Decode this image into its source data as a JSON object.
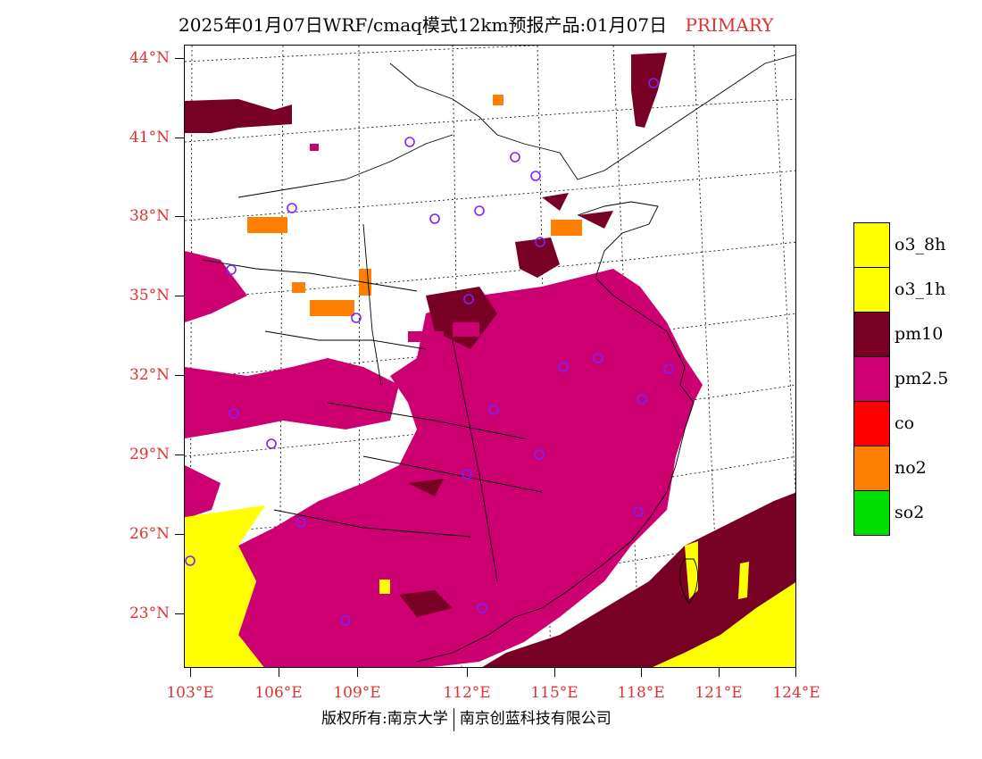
{
  "header": {
    "title": "2025年01月07日WRF/cmaq模式12km预报产品:01月07日",
    "mode": "PRIMARY"
  },
  "axes": {
    "lat_labels": [
      "44°N",
      "41°N",
      "38°N",
      "35°N",
      "32°N",
      "29°N",
      "26°N",
      "23°N"
    ],
    "lon_labels": [
      "103°E",
      "106°E",
      "109°E",
      "112°E",
      "115°E",
      "118°E",
      "121°E",
      "124°E"
    ]
  },
  "legend": {
    "items": [
      {
        "label": "o3_8h",
        "color": "#ffff00"
      },
      {
        "label": "o3_1h",
        "color": "#ffff00"
      },
      {
        "label": "pm10",
        "color": "#780024"
      },
      {
        "label": "pm2.5",
        "color": "#cc0070"
      },
      {
        "label": "co",
        "color": "#ff0000"
      },
      {
        "label": "no2",
        "color": "#ff7f00"
      },
      {
        "label": "so2",
        "color": "#00dd00"
      }
    ]
  },
  "footer": {
    "copyright": "版权所有:南京大学",
    "company": "南京创蓝科技有限公司"
  },
  "colors": {
    "label_red": "#e03030",
    "station_marker": "#8020ff"
  }
}
